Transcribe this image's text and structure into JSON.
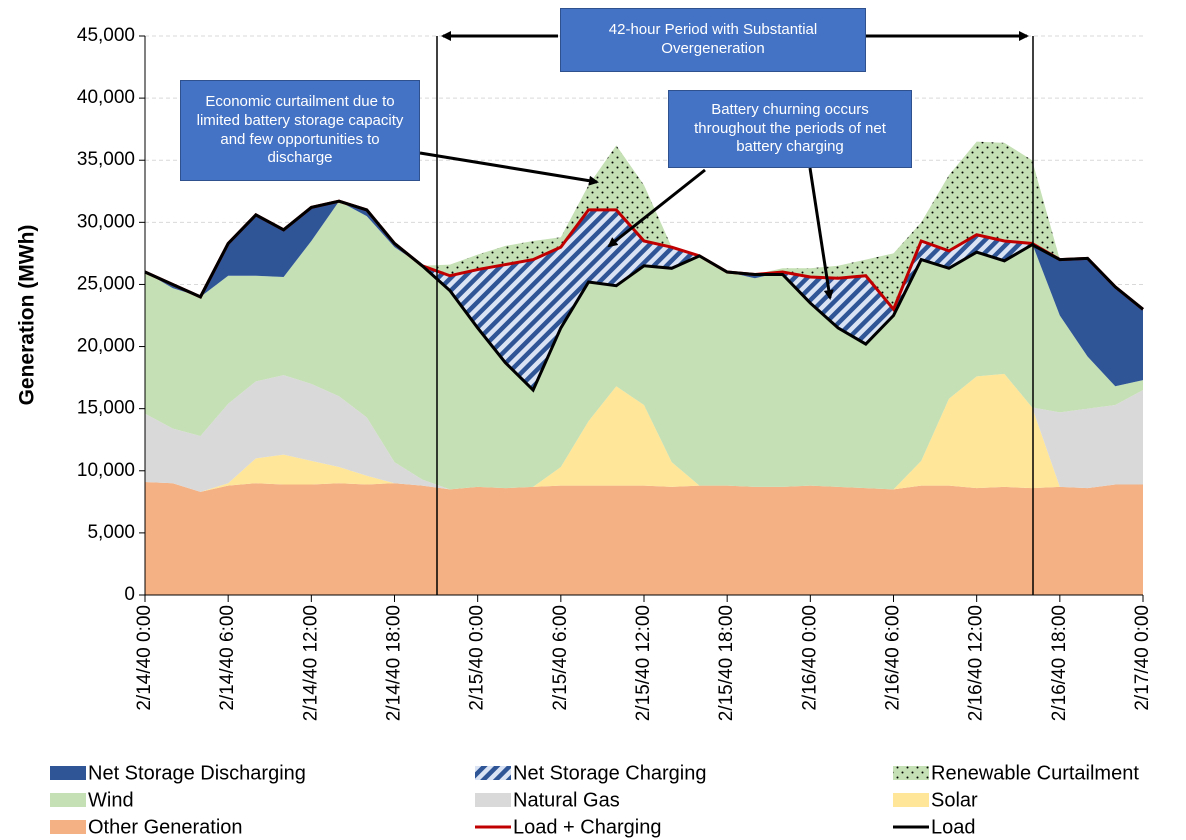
{
  "chart_data": {
    "type": "area",
    "y_label": "Generation (MWh)",
    "x": [
      0,
      2,
      4,
      6,
      8,
      10,
      12,
      14,
      16,
      18,
      20,
      22,
      24,
      26,
      28,
      30,
      32,
      34,
      36,
      38,
      40,
      42,
      44,
      46,
      48,
      50,
      52,
      54,
      56,
      58,
      60,
      62,
      64,
      66,
      68,
      70,
      72
    ],
    "xlim": [
      0,
      72
    ],
    "xticks": [
      {
        "value": 0,
        "label": "2/14/40 0:00"
      },
      {
        "value": 6,
        "label": "2/14/40 6:00"
      },
      {
        "value": 12,
        "label": "2/14/40 12:00"
      },
      {
        "value": 18,
        "label": "2/14/40 18:00"
      },
      {
        "value": 24,
        "label": "2/15/40 0:00"
      },
      {
        "value": 30,
        "label": "2/15/40 6:00"
      },
      {
        "value": 36,
        "label": "2/15/40 12:00"
      },
      {
        "value": 42,
        "label": "2/15/40 18:00"
      },
      {
        "value": 48,
        "label": "2/16/40 0:00"
      },
      {
        "value": 54,
        "label": "2/16/40 6:00"
      },
      {
        "value": 60,
        "label": "2/16/40 12:00"
      },
      {
        "value": 66,
        "label": "2/16/40 18:00"
      },
      {
        "value": 72,
        "label": "2/17/40 0:00"
      }
    ],
    "ylim": [
      0,
      45000
    ],
    "yticks": [
      0,
      {
        "value": 5000,
        "label": "5,000"
      },
      {
        "value": 10000,
        "label": "10,000"
      },
      {
        "value": 15000,
        "label": "15,000"
      },
      {
        "value": 20000,
        "label": "20,000"
      },
      {
        "value": 25000,
        "label": "25,000"
      },
      {
        "value": 30000,
        "label": "30,000"
      },
      {
        "value": 35000,
        "label": "35,000"
      },
      {
        "value": 40000,
        "label": "40,000"
      },
      {
        "value": 45000,
        "label": "45,000"
      }
    ],
    "series": [
      {
        "name": "Net Storage Discharging",
        "color": "#2f5597",
        "values": [
          0,
          300,
          0,
          2600,
          4900,
          3800,
          2700,
          0,
          500,
          300,
          0,
          0,
          0,
          0,
          0,
          0,
          0,
          0,
          0,
          0,
          0,
          0,
          300,
          0,
          0,
          0,
          0,
          0,
          0,
          0,
          0,
          0,
          0,
          4500,
          7900,
          8000,
          5700
        ]
      },
      {
        "name": "Net Storage Charging",
        "color": "#2f5597",
        "values": [
          0,
          0,
          0,
          0,
          0,
          0,
          0,
          0,
          0,
          0,
          0,
          1200,
          4700,
          7900,
          10500,
          6500,
          5800,
          6100,
          2000,
          1700,
          0,
          0,
          0,
          200,
          2100,
          4000,
          5500,
          500,
          1500,
          1400,
          1400,
          1600,
          100,
          0,
          0,
          0,
          0
        ]
      },
      {
        "name": "Renewable Curtailment",
        "color": "#c5e0b4",
        "values": [
          0,
          0,
          0,
          0,
          0,
          0,
          0,
          0,
          0,
          0,
          0,
          900,
          1200,
          1500,
          1500,
          800,
          2000,
          5200,
          4500,
          0,
          0,
          0,
          0,
          300,
          700,
          1000,
          1300,
          4500,
          1500,
          6100,
          7500,
          7900,
          6700,
          0,
          0,
          0,
          0
        ]
      },
      {
        "name": "Wind",
        "color": "#c5e0b4",
        "values": [
          11400,
          11300,
          11200,
          10300,
          8500,
          7900,
          11500,
          15700,
          16200,
          17300,
          17200,
          17200,
          17500,
          18000,
          18300,
          17700,
          17000,
          14200,
          13200,
          17300,
          18500,
          17200,
          16800,
          17300,
          16800,
          16800,
          17100,
          14500,
          17700,
          11900,
          11400,
          10700,
          13200,
          7800,
          4200,
          1500,
          800
        ]
      },
      {
        "name": "Natural Gas",
        "color": "#d9d9d9",
        "values": [
          5500,
          4400,
          4500,
          6400,
          6200,
          6400,
          6200,
          5700,
          4700,
          1700,
          500,
          0,
          0,
          0,
          0,
          0,
          0,
          0,
          0,
          0,
          0,
          0,
          0,
          0,
          0,
          0,
          0,
          0,
          0,
          0,
          0,
          0,
          0,
          6000,
          6400,
          6400,
          7600
        ]
      },
      {
        "name": "Solar",
        "color": "#ffe699",
        "values": [
          0,
          0,
          0,
          200,
          2000,
          2400,
          1900,
          1300,
          700,
          0,
          0,
          0,
          0,
          0,
          0,
          1500,
          5200,
          8000,
          6500,
          2000,
          0,
          0,
          0,
          0,
          0,
          0,
          0,
          0,
          2000,
          7000,
          9000,
          9100,
          6500,
          0,
          0,
          0,
          0
        ]
      },
      {
        "name": "Other Generation",
        "color": "#f4b183",
        "values": [
          9100,
          9000,
          8300,
          8800,
          9000,
          8900,
          8900,
          9000,
          8900,
          9000,
          8800,
          8500,
          8700,
          8600,
          8700,
          8800,
          8800,
          8800,
          8800,
          8700,
          8800,
          8800,
          8700,
          8700,
          8800,
          8700,
          8600,
          8500,
          8800,
          8800,
          8600,
          8700,
          8600,
          8700,
          8600,
          8900,
          8900
        ]
      },
      {
        "name": "Load + Charging",
        "color": "#c00000",
        "type": "line",
        "values": [
          26000,
          25000,
          24000,
          28300,
          30600,
          29400,
          31200,
          31700,
          31000,
          28300,
          26500,
          25700,
          26200,
          26600,
          27000,
          28000,
          31000,
          31000,
          28500,
          28000,
          27300,
          26000,
          25800,
          26000,
          25600,
          25500,
          25700,
          23000,
          28500,
          27700,
          29000,
          28500,
          28300,
          27000,
          27100,
          24800,
          23000
        ]
      },
      {
        "name": "Load",
        "color": "#000000",
        "type": "line",
        "values": [
          26000,
          25000,
          24000,
          28300,
          30600,
          29400,
          31200,
          31700,
          31000,
          28300,
          26500,
          24500,
          21500,
          18700,
          16500,
          21500,
          25200,
          24900,
          26500,
          26300,
          27300,
          26000,
          25800,
          25800,
          23500,
          21500,
          20200,
          22500,
          27000,
          26300,
          27600,
          26900,
          28200,
          27000,
          27100,
          24800,
          23000
        ]
      }
    ],
    "annotations": [
      "42-hour Period with Substantial Overgeneration",
      "Economic curtailment due to limited battery storage capacity and few opportunities to discharge",
      "Battery churning occurs throughout the periods of net battery charging"
    ]
  }
}
